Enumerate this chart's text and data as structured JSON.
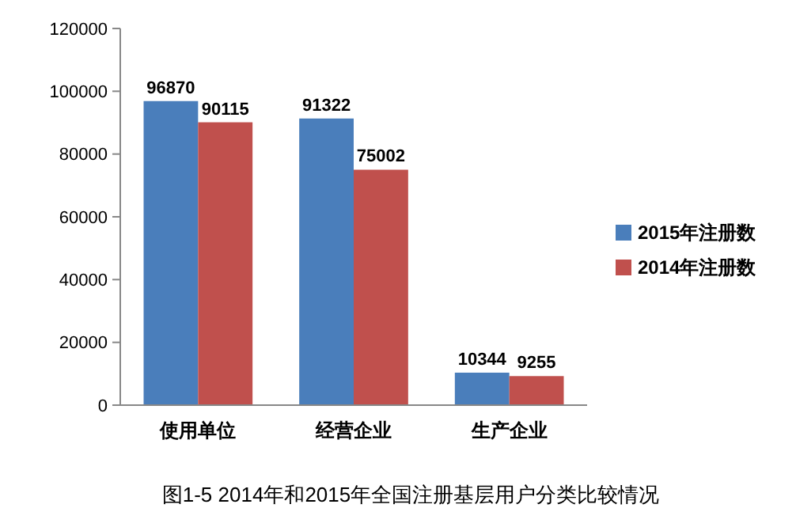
{
  "chart_data": {
    "type": "bar",
    "title": "图1-5 2014年和2015年全国注册基层用户分类比较情况",
    "categories": [
      "使用单位",
      "经营企业",
      "生产企业"
    ],
    "series": [
      {
        "name": "2015年注册数",
        "color": "#4a7ebb",
        "values": [
          96870,
          91322,
          10344
        ]
      },
      {
        "name": "2014年注册数",
        "color": "#c0504d",
        "values": [
          90115,
          75002,
          9255
        ]
      }
    ],
    "ylim": [
      0,
      120000
    ],
    "yticks": [
      0,
      20000,
      40000,
      60000,
      80000,
      100000,
      120000
    ],
    "grid": false,
    "legend": "right",
    "data_labels": true
  }
}
